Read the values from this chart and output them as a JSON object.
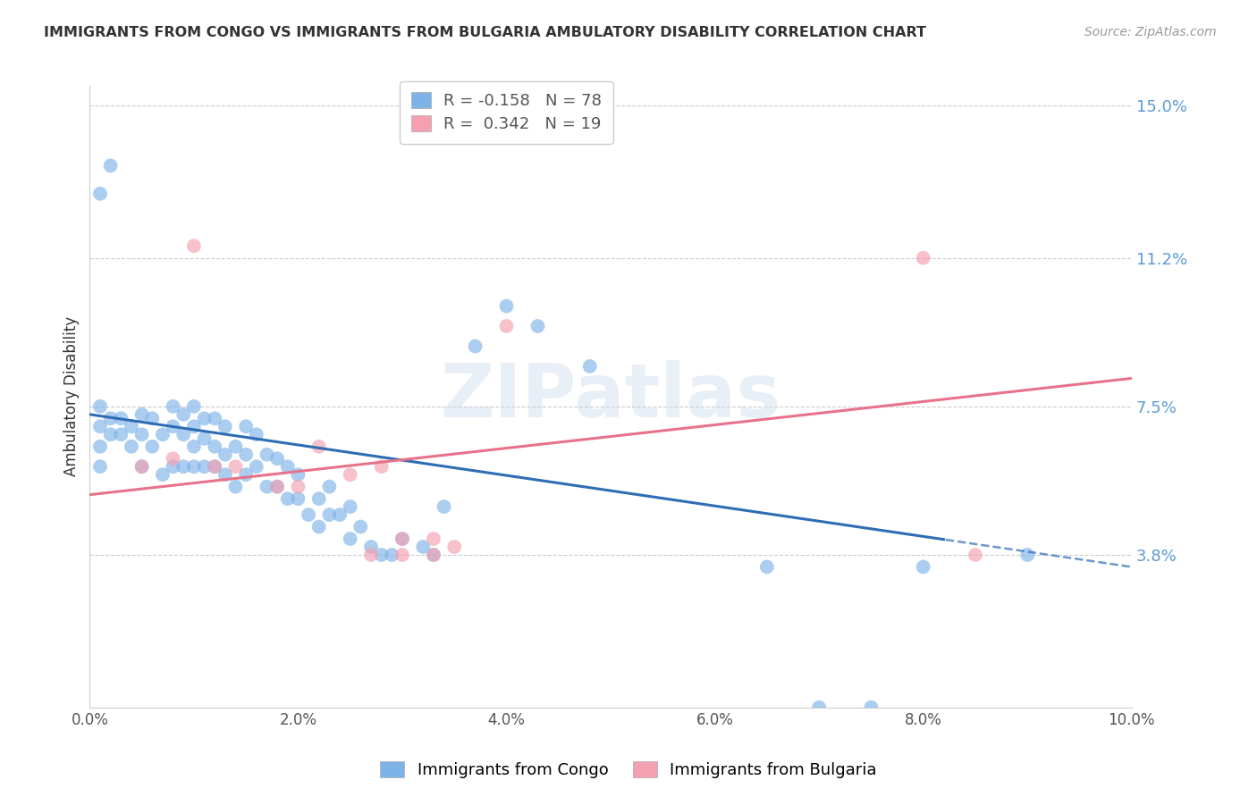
{
  "title": "IMMIGRANTS FROM CONGO VS IMMIGRANTS FROM BULGARIA AMBULATORY DISABILITY CORRELATION CHART",
  "source": "Source: ZipAtlas.com",
  "ylabel": "Ambulatory Disability",
  "xlim": [
    0.0,
    0.1
  ],
  "ylim": [
    0.0,
    0.155
  ],
  "yticks": [
    0.038,
    0.075,
    0.112,
    0.15
  ],
  "ytick_labels": [
    "3.8%",
    "7.5%",
    "11.2%",
    "15.0%"
  ],
  "xticks": [
    0.0,
    0.02,
    0.04,
    0.06,
    0.08,
    0.1
  ],
  "xtick_labels": [
    "0.0%",
    "2.0%",
    "4.0%",
    "6.0%",
    "8.0%",
    "10.0%"
  ],
  "congo_R": -0.158,
  "congo_N": 78,
  "bulgaria_R": 0.342,
  "bulgaria_N": 19,
  "congo_color": "#7EB3E8",
  "bulgaria_color": "#F4A0B0",
  "congo_line_color": "#2E6DB4",
  "bulgaria_line_color": "#E8728A",
  "background_color": "#FFFFFF",
  "grid_color": "#CCCCCC",
  "watermark": "ZIPatlas",
  "congo_line_x0": 0.0,
  "congo_line_y0": 0.073,
  "congo_line_x1": 0.1,
  "congo_line_y1": 0.035,
  "congo_line_solid_end": 0.082,
  "bulgaria_line_x0": 0.0,
  "bulgaria_line_y0": 0.053,
  "bulgaria_line_x1": 0.1,
  "bulgaria_line_y1": 0.082,
  "congo_x": [
    0.001,
    0.001,
    0.001,
    0.001,
    0.002,
    0.002,
    0.003,
    0.003,
    0.004,
    0.004,
    0.005,
    0.005,
    0.005,
    0.006,
    0.006,
    0.007,
    0.007,
    0.008,
    0.008,
    0.008,
    0.009,
    0.009,
    0.009,
    0.01,
    0.01,
    0.01,
    0.01,
    0.011,
    0.011,
    0.011,
    0.012,
    0.012,
    0.012,
    0.013,
    0.013,
    0.013,
    0.014,
    0.014,
    0.015,
    0.015,
    0.015,
    0.016,
    0.016,
    0.017,
    0.017,
    0.018,
    0.018,
    0.019,
    0.019,
    0.02,
    0.02,
    0.021,
    0.022,
    0.022,
    0.023,
    0.023,
    0.024,
    0.025,
    0.025,
    0.026,
    0.027,
    0.028,
    0.029,
    0.03,
    0.032,
    0.033,
    0.034,
    0.037,
    0.04,
    0.043,
    0.048,
    0.065,
    0.07,
    0.075,
    0.08,
    0.09,
    0.001,
    0.002
  ],
  "congo_y": [
    0.075,
    0.07,
    0.065,
    0.06,
    0.068,
    0.072,
    0.068,
    0.072,
    0.065,
    0.07,
    0.06,
    0.068,
    0.073,
    0.065,
    0.072,
    0.058,
    0.068,
    0.06,
    0.07,
    0.075,
    0.06,
    0.068,
    0.073,
    0.06,
    0.065,
    0.07,
    0.075,
    0.06,
    0.067,
    0.072,
    0.06,
    0.065,
    0.072,
    0.058,
    0.063,
    0.07,
    0.055,
    0.065,
    0.058,
    0.063,
    0.07,
    0.06,
    0.068,
    0.055,
    0.063,
    0.055,
    0.062,
    0.052,
    0.06,
    0.052,
    0.058,
    0.048,
    0.045,
    0.052,
    0.048,
    0.055,
    0.048,
    0.042,
    0.05,
    0.045,
    0.04,
    0.038,
    0.038,
    0.042,
    0.04,
    0.038,
    0.05,
    0.09,
    0.1,
    0.095,
    0.085,
    0.035,
    0.0,
    0.0,
    0.035,
    0.038,
    0.128,
    0.135
  ],
  "bulgaria_x": [
    0.005,
    0.008,
    0.01,
    0.012,
    0.014,
    0.018,
    0.02,
    0.022,
    0.025,
    0.027,
    0.028,
    0.03,
    0.03,
    0.033,
    0.033,
    0.035,
    0.04,
    0.08,
    0.085
  ],
  "bulgaria_y": [
    0.06,
    0.062,
    0.115,
    0.06,
    0.06,
    0.055,
    0.055,
    0.065,
    0.058,
    0.038,
    0.06,
    0.038,
    0.042,
    0.038,
    0.042,
    0.04,
    0.095,
    0.112,
    0.038
  ]
}
